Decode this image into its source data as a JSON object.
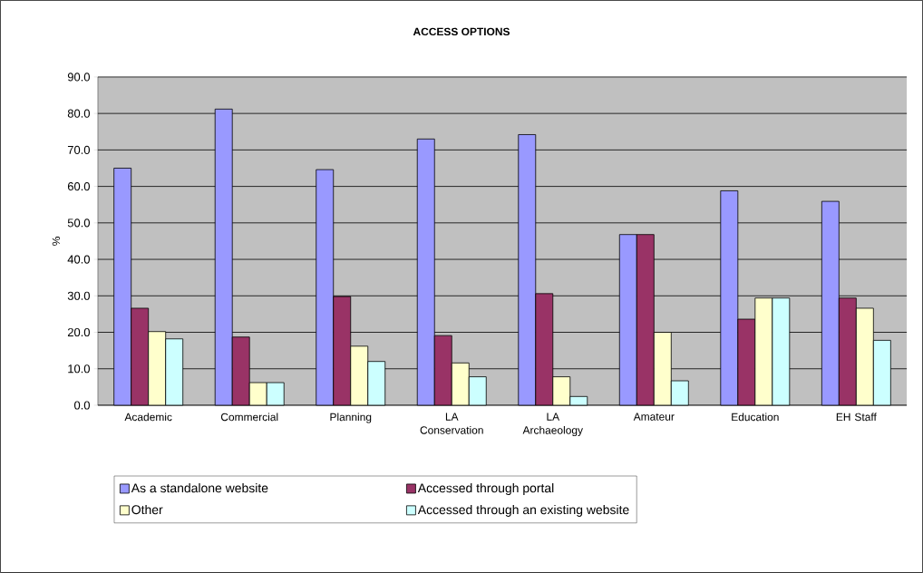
{
  "chart_data": {
    "type": "bar",
    "title": "ACCESS OPTIONS",
    "ylabel": "%",
    "categories": [
      "Academic",
      "Commercial",
      "Planning",
      "LA Conservation",
      "LA Archaeology",
      "Amateur",
      "Education",
      "EH Staff"
    ],
    "series": [
      {
        "name": "As a standalone website",
        "color": "#9999ff",
        "values": [
          65.0,
          81.2,
          64.6,
          73.0,
          74.2,
          46.8,
          58.8,
          55.9
        ]
      },
      {
        "name": "Accessed through portal",
        "color": "#993366",
        "values": [
          26.6,
          18.7,
          29.8,
          19.1,
          30.6,
          46.8,
          23.6,
          29.4
        ]
      },
      {
        "name": "Other",
        "color": "#ffffcc",
        "values": [
          20.2,
          6.2,
          16.2,
          11.6,
          7.8,
          20.0,
          29.4,
          26.6
        ]
      },
      {
        "name": "Accessed through an existing website",
        "color": "#ccffff",
        "values": [
          18.2,
          6.2,
          12.0,
          7.8,
          2.4,
          6.7,
          29.4,
          17.8
        ]
      }
    ],
    "ylim": [
      0,
      90
    ],
    "yticks": [
      {
        "value": 0,
        "label": "0.0"
      },
      {
        "value": 10,
        "label": "10.0"
      },
      {
        "value": 20,
        "label": "20.0"
      },
      {
        "value": 30,
        "label": "30.0"
      },
      {
        "value": 40,
        "label": "40.0"
      },
      {
        "value": 50,
        "label": "50.0"
      },
      {
        "value": 60,
        "label": "60.0"
      },
      {
        "value": 70,
        "label": "70.0"
      },
      {
        "value": 80,
        "label": "80.0"
      },
      {
        "value": 90,
        "label": "90.0"
      }
    ],
    "grid": "y",
    "legend": "bottom"
  }
}
